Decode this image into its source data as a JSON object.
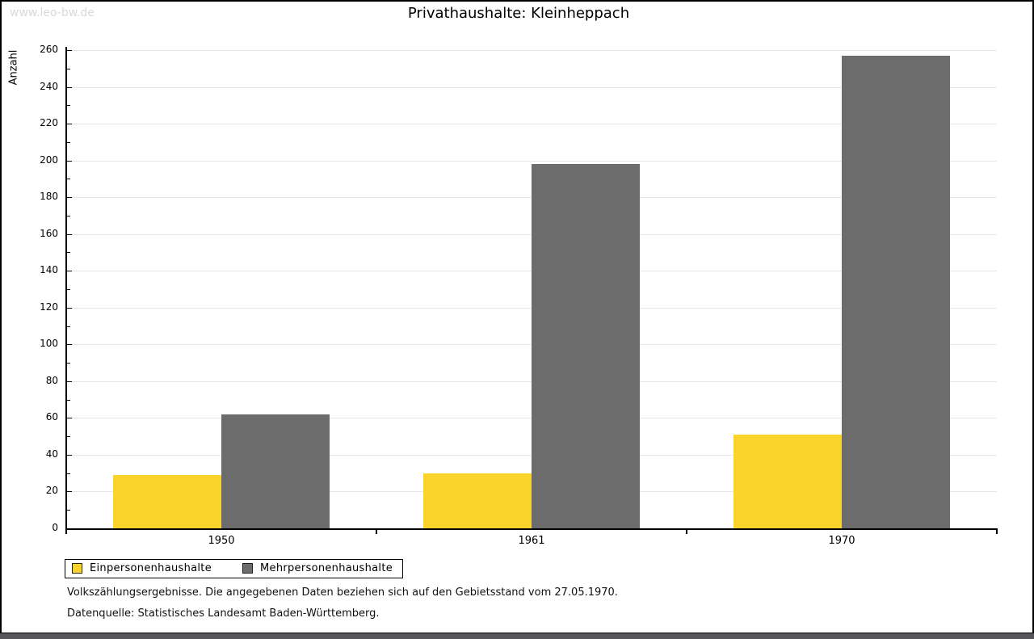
{
  "watermark": "www.leo-bw.de",
  "title": "Privathaushalte: Kleinheppach",
  "chart_data": {
    "type": "bar",
    "title": "Privathaushalte: Kleinheppach",
    "ylabel": "Anzahl",
    "xlabel": "",
    "categories": [
      "1950",
      "1961",
      "1970"
    ],
    "series": [
      {
        "name": "Einpersonenhaushalte",
        "color": "#fbd32d",
        "values": [
          29,
          30,
          51
        ]
      },
      {
        "name": "Mehrpersonenhaushalte",
        "color": "#6c6c6c",
        "values": [
          62,
          198,
          257
        ]
      }
    ],
    "ylim": [
      0,
      260
    ],
    "yticks": [
      0,
      20,
      40,
      60,
      80,
      100,
      120,
      140,
      160,
      180,
      200,
      220,
      240,
      260
    ],
    "minor_tick_step": 10,
    "grid": true,
    "grid_color": "#e7e7e7",
    "legend_position": "bottom-left"
  },
  "footer": {
    "line1": "Volkszählungsergebnisse. Die angegebenen Daten beziehen sich auf den Gebietsstand vom 27.05.1970.",
    "line2": "Datenquelle: Statistisches Landesamt Baden-Württemberg."
  }
}
